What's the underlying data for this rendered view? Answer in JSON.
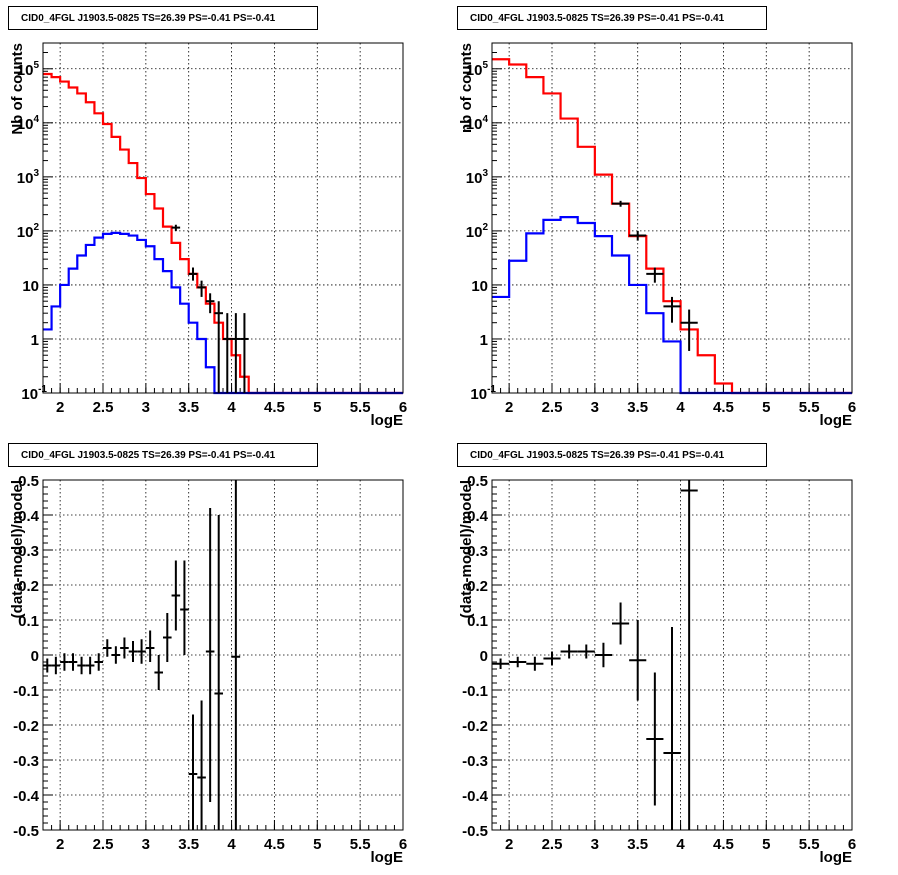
{
  "chart_data": [
    {
      "type": "step",
      "title": "CID0_4FGL J1903.5-0825 TS=26.39 PS=-0.41 PS=-0.41",
      "xlabel": "logE",
      "ylabel": "Nb of counts",
      "xlim": [
        1.8,
        6
      ],
      "ylim": [
        0.1,
        300000
      ],
      "yscale": "log",
      "xticks": [
        "2",
        "2.5",
        "3",
        "3.5",
        "4",
        "4.5",
        "5",
        "5.5",
        "6"
      ],
      "yticks": [
        "10^-1",
        "1",
        "10",
        "10^2",
        "10^3",
        "10^4",
        "10^5"
      ],
      "grid": true,
      "bin_edges": [
        1.8,
        1.9,
        2.0,
        2.1,
        2.2,
        2.3,
        2.4,
        2.5,
        2.6,
        2.7,
        2.8,
        2.9,
        3.0,
        3.1,
        3.2,
        3.3,
        3.4,
        3.5,
        3.6,
        3.7,
        3.8,
        3.9,
        4.0,
        4.1,
        4.2,
        4.3,
        4.4,
        4.5,
        4.6,
        4.7,
        4.8,
        4.9,
        5.0,
        5.1,
        5.2,
        5.3,
        5.4,
        5.5,
        5.6,
        5.7,
        5.8,
        5.9,
        6.0
      ],
      "series": [
        {
          "color": "#ff0000",
          "values": [
            80000,
            70000,
            58000,
            45000,
            35000,
            24000,
            15000,
            9500,
            5500,
            3200,
            1800,
            950,
            480,
            260,
            120,
            60,
            30,
            16,
            9,
            4.5,
            2,
            1,
            0.5,
            0.2,
            0.1,
            0.1,
            0.1,
            0.1,
            0.1,
            0.1,
            0.1,
            0.1,
            0.1,
            0.1,
            0.1,
            0.1,
            0.1,
            0.1,
            0.1,
            0.1,
            0.1,
            0.1
          ]
        },
        {
          "color": "#0000ff",
          "values": [
            1.5,
            4,
            10,
            20,
            35,
            55,
            75,
            88,
            92,
            88,
            82,
            68,
            52,
            30,
            18,
            9,
            4.5,
            2,
            1,
            0.3,
            0.1,
            0.1,
            0.1,
            0.1,
            0.1,
            0.1,
            0.1,
            0.1,
            0.1,
            0.1,
            0.1,
            0.1,
            0.1,
            0.1,
            0.1,
            0.1,
            0.1,
            0.1,
            0.1,
            0.1,
            0.1,
            0.1
          ]
        }
      ],
      "points": [
        {
          "x": 3.35,
          "y": 115,
          "xerr": 0.05,
          "ylo": 100,
          "yhi": 130
        },
        {
          "x": 3.55,
          "y": 16,
          "xerr": 0.05,
          "ylo": 12,
          "yhi": 21
        },
        {
          "x": 3.65,
          "y": 9,
          "xerr": 0.05,
          "ylo": 6,
          "yhi": 12
        },
        {
          "x": 3.75,
          "y": 5,
          "xerr": 0.05,
          "ylo": 3,
          "yhi": 7
        },
        {
          "x": 3.85,
          "y": 3,
          "xerr": 0.05,
          "ylo": 0.1,
          "yhi": 5
        },
        {
          "x": 3.95,
          "y": 1,
          "xerr": 0.05,
          "ylo": 0.1,
          "yhi": 3
        },
        {
          "x": 4.05,
          "y": 1,
          "xerr": 0.05,
          "ylo": 0.1,
          "yhi": 3
        },
        {
          "x": 4.15,
          "y": 1,
          "xerr": 0.05,
          "ylo": 0.1,
          "yhi": 3
        }
      ]
    },
    {
      "type": "step",
      "title": "CID0_4FGL J1903.5-0825 TS=26.39 PS=-0.41 PS=-0.41",
      "xlabel": "logE",
      "ylabel": "nb of counts",
      "xlim": [
        1.8,
        6
      ],
      "ylim": [
        0.1,
        300000
      ],
      "yscale": "log",
      "xticks": [
        "2",
        "2.5",
        "3",
        "3.5",
        "4",
        "4.5",
        "5",
        "5.5",
        "6"
      ],
      "yticks": [
        "10^-1",
        "1",
        "10",
        "10^2",
        "10^3",
        "10^4",
        "10^5"
      ],
      "grid": true,
      "bin_edges": [
        1.8,
        2.0,
        2.2,
        2.4,
        2.6,
        2.8,
        3.0,
        3.2,
        3.4,
        3.6,
        3.8,
        4.0,
        4.2,
        4.4,
        4.6,
        4.8,
        5.0,
        5.2,
        5.4,
        5.6,
        5.8,
        6.0
      ],
      "series": [
        {
          "color": "#ff0000",
          "values": [
            150000,
            120000,
            70000,
            35000,
            12000,
            3600,
            1100,
            320,
            80,
            20,
            5,
            1.5,
            0.5,
            0.15,
            0.1,
            0.1,
            0.1,
            0.1,
            0.1,
            0.1,
            0.1
          ]
        },
        {
          "color": "#0000ff",
          "values": [
            6,
            28,
            90,
            160,
            180,
            140,
            80,
            35,
            10,
            3,
            0.9,
            0.1,
            0.1,
            0.1,
            0.1,
            0.1,
            0.1,
            0.1,
            0.1,
            0.1,
            0.1
          ]
        }
      ],
      "points": [
        {
          "x": 3.3,
          "y": 320,
          "xerr": 0.1,
          "ylo": 280,
          "yhi": 360
        },
        {
          "x": 3.5,
          "y": 82,
          "xerr": 0.1,
          "ylo": 66,
          "yhi": 100
        },
        {
          "x": 3.7,
          "y": 16,
          "xerr": 0.1,
          "ylo": 11,
          "yhi": 21
        },
        {
          "x": 3.9,
          "y": 4,
          "xerr": 0.1,
          "ylo": 2,
          "yhi": 6
        },
        {
          "x": 4.1,
          "y": 2,
          "xerr": 0.1,
          "ylo": 0.6,
          "yhi": 3.5
        }
      ]
    },
    {
      "type": "scatter",
      "title": "CID0_4FGL J1903.5-0825 TS=26.39 PS=-0.41 PS=-0.41",
      "xlabel": "logE",
      "ylabel": "(data-model)/model",
      "xlim": [
        1.8,
        6
      ],
      "ylim": [
        -0.5,
        0.5
      ],
      "yscale": "linear",
      "xticks": [
        "2",
        "2.5",
        "3",
        "3.5",
        "4",
        "4.5",
        "5",
        "5.5",
        "6"
      ],
      "yticks": [
        "-0.5",
        "-0.4",
        "-0.3",
        "-0.2",
        "-0.1",
        "0",
        "0.1",
        "0.2",
        "0.3",
        "0.4",
        "0.5"
      ],
      "grid": true,
      "points": [
        {
          "x": 1.85,
          "y": -0.03,
          "xerr": 0.05,
          "ylo": -0.05,
          "yhi": -0.01
        },
        {
          "x": 1.95,
          "y": -0.03,
          "xerr": 0.05,
          "ylo": -0.055,
          "yhi": -0.005
        },
        {
          "x": 2.05,
          "y": -0.02,
          "xerr": 0.05,
          "ylo": -0.045,
          "yhi": 0.005
        },
        {
          "x": 2.15,
          "y": -0.02,
          "xerr": 0.05,
          "ylo": -0.045,
          "yhi": 0.005
        },
        {
          "x": 2.25,
          "y": -0.03,
          "xerr": 0.05,
          "ylo": -0.055,
          "yhi": -0.005
        },
        {
          "x": 2.35,
          "y": -0.03,
          "xerr": 0.05,
          "ylo": -0.055,
          "yhi": -0.005
        },
        {
          "x": 2.45,
          "y": -0.02,
          "xerr": 0.05,
          "ylo": -0.045,
          "yhi": 0.005
        },
        {
          "x": 2.55,
          "y": 0.02,
          "xerr": 0.05,
          "ylo": -0.005,
          "yhi": 0.045
        },
        {
          "x": 2.65,
          "y": 0.0,
          "xerr": 0.05,
          "ylo": -0.025,
          "yhi": 0.025
        },
        {
          "x": 2.75,
          "y": 0.02,
          "xerr": 0.05,
          "ylo": -0.01,
          "yhi": 0.05
        },
        {
          "x": 2.85,
          "y": 0.01,
          "xerr": 0.05,
          "ylo": -0.02,
          "yhi": 0.04
        },
        {
          "x": 2.95,
          "y": 0.01,
          "xerr": 0.05,
          "ylo": -0.025,
          "yhi": 0.045
        },
        {
          "x": 3.05,
          "y": 0.02,
          "xerr": 0.05,
          "ylo": -0.02,
          "yhi": 0.07
        },
        {
          "x": 3.15,
          "y": -0.05,
          "xerr": 0.05,
          "ylo": -0.1,
          "yhi": 0.0
        },
        {
          "x": 3.25,
          "y": 0.05,
          "xerr": 0.05,
          "ylo": -0.02,
          "yhi": 0.12
        },
        {
          "x": 3.35,
          "y": 0.17,
          "xerr": 0.05,
          "ylo": 0.07,
          "yhi": 0.27
        },
        {
          "x": 3.45,
          "y": 0.13,
          "xerr": 0.05,
          "ylo": 0.0,
          "yhi": 0.27
        },
        {
          "x": 3.55,
          "y": -0.34,
          "xerr": 0.05,
          "ylo": -0.5,
          "yhi": -0.17
        },
        {
          "x": 3.65,
          "y": -0.35,
          "xerr": 0.05,
          "ylo": -0.5,
          "yhi": -0.13
        },
        {
          "x": 3.75,
          "y": 0.01,
          "xerr": 0.05,
          "ylo": -0.42,
          "yhi": 0.42
        },
        {
          "x": 3.85,
          "y": -0.11,
          "xerr": 0.05,
          "ylo": -0.5,
          "yhi": 0.4
        },
        {
          "x": 4.05,
          "y": -0.005,
          "xerr": 0.05,
          "ylo": -0.5,
          "yhi": 0.5
        }
      ]
    },
    {
      "type": "scatter",
      "title": "CID0_4FGL J1903.5-0825 TS=26.39 PS=-0.41 PS=-0.41",
      "xlabel": "logE",
      "ylabel": "(data-model)/model",
      "xlim": [
        1.8,
        6
      ],
      "ylim": [
        -0.5,
        0.5
      ],
      "yscale": "linear",
      "xticks": [
        "2",
        "2.5",
        "3",
        "3.5",
        "4",
        "4.5",
        "5",
        "5.5",
        "6"
      ],
      "yticks": [
        "-0.5",
        "-0.4",
        "-0.3",
        "-0.2",
        "-0.1",
        "0",
        "0.1",
        "0.2",
        "0.3",
        "0.4",
        "0.5"
      ],
      "grid": true,
      "points": [
        {
          "x": 1.9,
          "y": -0.025,
          "xerr": 0.1,
          "ylo": -0.04,
          "yhi": -0.01
        },
        {
          "x": 2.1,
          "y": -0.02,
          "xerr": 0.1,
          "ylo": -0.035,
          "yhi": -0.005
        },
        {
          "x": 2.3,
          "y": -0.025,
          "xerr": 0.1,
          "ylo": -0.045,
          "yhi": -0.005
        },
        {
          "x": 2.5,
          "y": -0.01,
          "xerr": 0.1,
          "ylo": -0.03,
          "yhi": 0.01
        },
        {
          "x": 2.7,
          "y": 0.01,
          "xerr": 0.1,
          "ylo": -0.01,
          "yhi": 0.03
        },
        {
          "x": 2.9,
          "y": 0.01,
          "xerr": 0.1,
          "ylo": -0.01,
          "yhi": 0.03
        },
        {
          "x": 3.1,
          "y": 0.0,
          "xerr": 0.1,
          "ylo": -0.035,
          "yhi": 0.035
        },
        {
          "x": 3.3,
          "y": 0.09,
          "xerr": 0.1,
          "ylo": 0.03,
          "yhi": 0.15
        },
        {
          "x": 3.5,
          "y": -0.015,
          "xerr": 0.1,
          "ylo": -0.13,
          "yhi": 0.1
        },
        {
          "x": 3.7,
          "y": -0.24,
          "xerr": 0.1,
          "ylo": -0.43,
          "yhi": -0.05
        },
        {
          "x": 3.9,
          "y": -0.28,
          "xerr": 0.1,
          "ylo": -0.5,
          "yhi": 0.08
        },
        {
          "x": 4.1,
          "y": 0.47,
          "xerr": 0.1,
          "ylo": -0.5,
          "yhi": 0.5
        }
      ]
    }
  ]
}
